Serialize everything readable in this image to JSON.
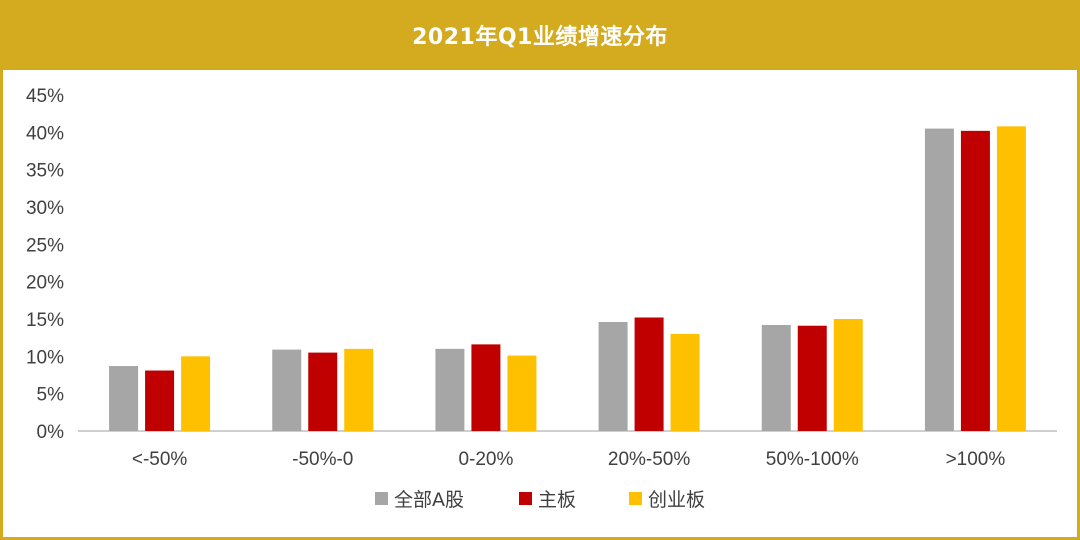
{
  "chart_data": {
    "type": "bar",
    "title": "2021年Q1业绩增速分布",
    "categories": [
      "<-50%",
      "-50%-0",
      "0-20%",
      "20%-50%",
      "50%-100%",
      ">100%"
    ],
    "series": [
      {
        "name": "全部A股",
        "color": "#A6A6A6",
        "values": [
          8.7,
          10.9,
          11.0,
          14.6,
          14.2,
          40.5
        ]
      },
      {
        "name": "主板",
        "color": "#C00000",
        "values": [
          8.1,
          10.5,
          11.6,
          15.2,
          14.1,
          40.2
        ]
      },
      {
        "name": "创业板",
        "color": "#FFC000",
        "values": [
          10.0,
          11.0,
          10.1,
          13.0,
          15.0,
          40.8
        ]
      }
    ],
    "ylim": [
      0,
      45
    ],
    "yticks": [
      0,
      5,
      10,
      15,
      20,
      25,
      30,
      35,
      40,
      45
    ],
    "ytick_labels": [
      "0%",
      "5%",
      "10%",
      "15%",
      "20%",
      "25%",
      "30%",
      "35%",
      "40%",
      "45%"
    ],
    "grid": false,
    "legend_position": "bottom"
  },
  "theme": {
    "frame_color": "#D4AA1E",
    "title_color": "#FFFFFF"
  }
}
